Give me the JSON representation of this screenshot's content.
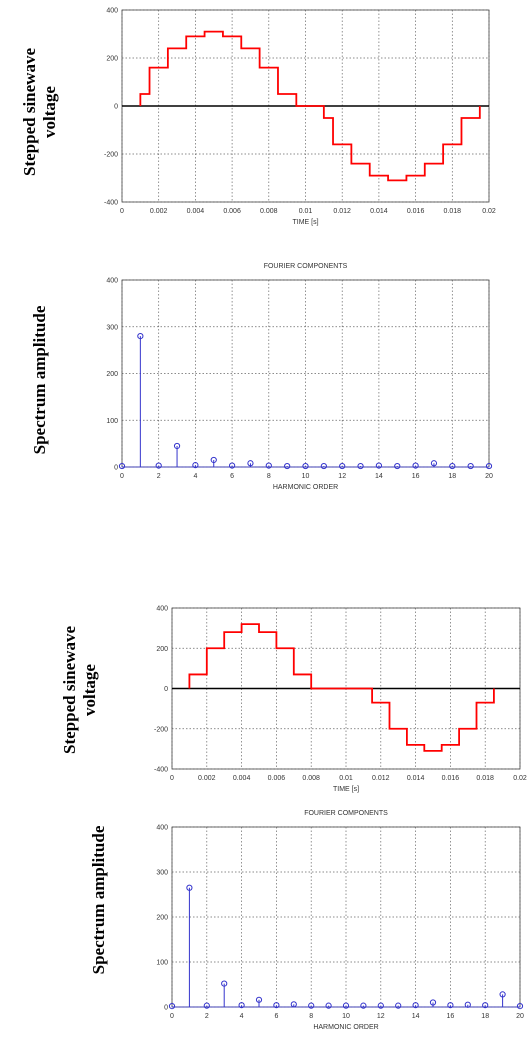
{
  "chart_data": [
    {
      "type": "line",
      "side_label": [
        "Stepped sinewave",
        "voltage"
      ],
      "title": "",
      "xlabel": "TIME [s]",
      "xlim": [
        0,
        0.02
      ],
      "ylim": [
        -400,
        400
      ],
      "xticks": [
        "0",
        "0.002",
        "0.004",
        "0.006",
        "0.008",
        "0.01",
        "0.012",
        "0.014",
        "0.016",
        "0.018",
        "0.02"
      ],
      "yticks": [
        "400",
        "200",
        "0",
        "-200",
        "-400"
      ],
      "grid": true,
      "color": "#ff0000",
      "steps": [
        [
          0.001,
          50
        ],
        [
          0.0015,
          160
        ],
        [
          0.0025,
          240
        ],
        [
          0.0035,
          290
        ],
        [
          0.0045,
          310
        ],
        [
          0.0055,
          290
        ],
        [
          0.0065,
          240
        ],
        [
          0.0075,
          160
        ],
        [
          0.0085,
          50
        ],
        [
          0.0095,
          0
        ],
        [
          0.011,
          -50
        ],
        [
          0.0115,
          -160
        ],
        [
          0.0125,
          -240
        ],
        [
          0.0135,
          -290
        ],
        [
          0.0145,
          -310
        ],
        [
          0.0155,
          -290
        ],
        [
          0.0165,
          -240
        ],
        [
          0.0175,
          -160
        ],
        [
          0.0185,
          -50
        ],
        [
          0.0195,
          0
        ]
      ]
    },
    {
      "type": "stem",
      "side_label": [
        "Spectrum amplitude"
      ],
      "title": "FOURIER COMPONENTS",
      "xlabel": "HARMONIC ORDER",
      "xlim": [
        0,
        20
      ],
      "ylim": [
        0,
        400
      ],
      "xticks": [
        "0",
        "2",
        "4",
        "6",
        "8",
        "10",
        "12",
        "14",
        "16",
        "18",
        "20"
      ],
      "yticks": [
        "400",
        "300",
        "200",
        "100",
        "0"
      ],
      "grid": true,
      "color": "#3333cc",
      "x": [
        0,
        1,
        2,
        3,
        4,
        5,
        6,
        7,
        8,
        9,
        10,
        11,
        12,
        13,
        14,
        15,
        16,
        17,
        18,
        19,
        20
      ],
      "values": [
        2,
        280,
        3,
        45,
        4,
        15,
        3,
        8,
        3,
        2,
        2,
        2,
        2,
        2,
        3,
        2,
        3,
        8,
        2,
        2,
        2
      ]
    },
    {
      "type": "line",
      "side_label": [
        "Stepped sinewave",
        "voltage"
      ],
      "title": "",
      "xlabel": "TIME [s]",
      "xlim": [
        0,
        0.02
      ],
      "ylim": [
        -400,
        400
      ],
      "xticks": [
        "0",
        "0.002",
        "0.004",
        "0.006",
        "0.008",
        "0.01",
        "0.012",
        "0.014",
        "0.016",
        "0.018",
        "0.02"
      ],
      "yticks": [
        "400",
        "200",
        "0",
        "-200",
        "-400"
      ],
      "grid": true,
      "color": "#ff0000",
      "steps": [
        [
          0.001,
          70
        ],
        [
          0.002,
          200
        ],
        [
          0.003,
          280
        ],
        [
          0.004,
          320
        ],
        [
          0.005,
          280
        ],
        [
          0.006,
          200
        ],
        [
          0.007,
          70
        ],
        [
          0.008,
          0
        ],
        [
          0.0115,
          -70
        ],
        [
          0.0125,
          -200
        ],
        [
          0.0135,
          -280
        ],
        [
          0.0145,
          -310
        ],
        [
          0.0155,
          -280
        ],
        [
          0.0165,
          -200
        ],
        [
          0.0175,
          -70
        ],
        [
          0.0185,
          0
        ]
      ]
    },
    {
      "type": "stem",
      "side_label": [
        "Spectrum amplitude"
      ],
      "title": "FOURIER COMPONENTS",
      "xlabel": "HARMONIC ORDER",
      "xlim": [
        0,
        20
      ],
      "ylim": [
        0,
        400
      ],
      "xticks": [
        "0",
        "2",
        "4",
        "6",
        "8",
        "10",
        "12",
        "14",
        "16",
        "18",
        "20"
      ],
      "yticks": [
        "400",
        "300",
        "200",
        "100",
        "0"
      ],
      "grid": true,
      "color": "#3333cc",
      "x": [
        0,
        1,
        2,
        3,
        4,
        5,
        6,
        7,
        8,
        9,
        10,
        11,
        12,
        13,
        14,
        15,
        16,
        17,
        18,
        19,
        20
      ],
      "values": [
        2,
        265,
        3,
        52,
        4,
        16,
        4,
        6,
        3,
        3,
        3,
        3,
        3,
        3,
        4,
        10,
        4,
        5,
        4,
        28,
        2
      ]
    }
  ]
}
